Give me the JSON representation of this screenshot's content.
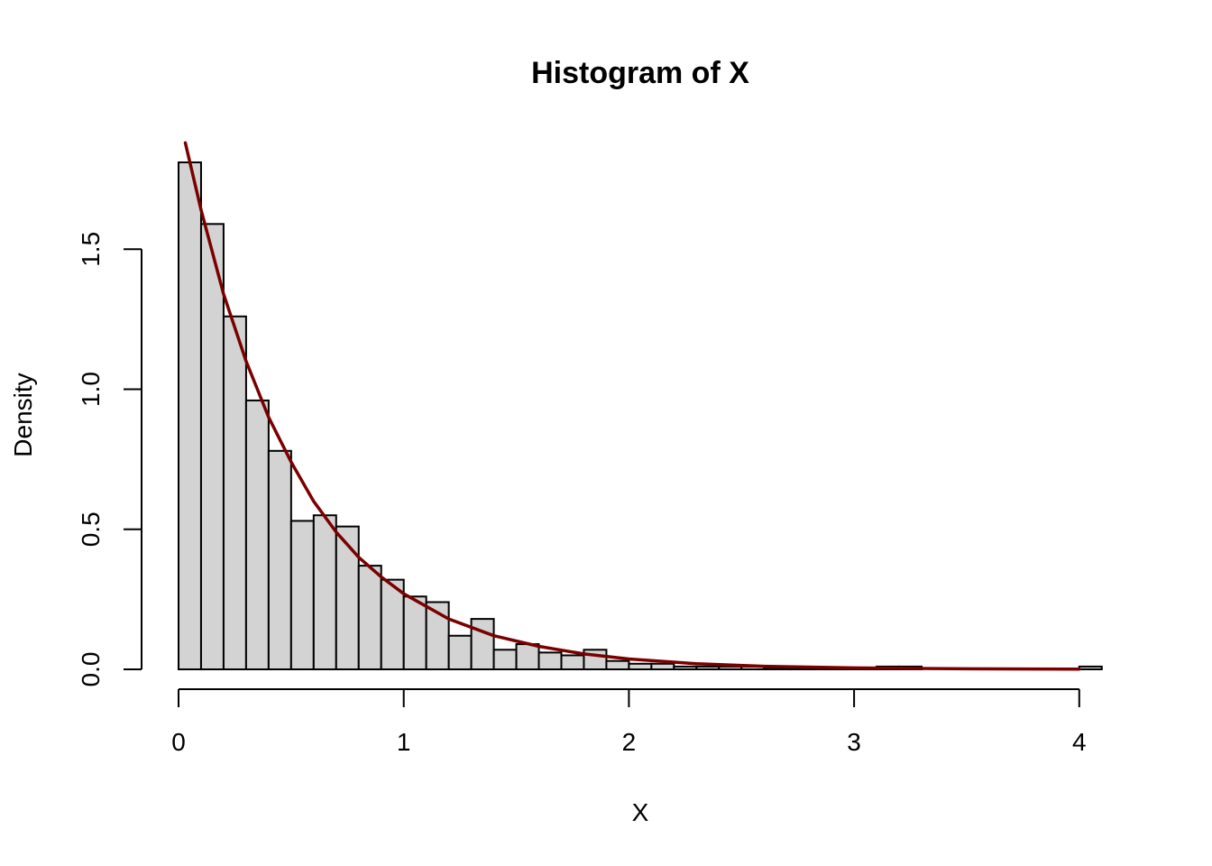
{
  "chart_data": {
    "type": "bar",
    "title": "Histogram of X",
    "xlabel": "X",
    "ylabel": "Density",
    "xlim": [
      0,
      4.1
    ],
    "ylim": [
      0,
      1.8
    ],
    "x_ticks": [
      0,
      1,
      2,
      3,
      4
    ],
    "x_tick_labels": [
      "0",
      "1",
      "2",
      "3",
      "4"
    ],
    "y_ticks": [
      0,
      0.5,
      1,
      1.5
    ],
    "y_tick_labels": [
      "0.0",
      "0.5",
      "1.0",
      "1.5"
    ],
    "bin_width": 0.1,
    "bin_starts": [
      0.0,
      0.1,
      0.2,
      0.3,
      0.4,
      0.5,
      0.6,
      0.7,
      0.8,
      0.9,
      1.0,
      1.1,
      1.2,
      1.3,
      1.4,
      1.5,
      1.6,
      1.7,
      1.8,
      1.9,
      2.0,
      2.1,
      2.2,
      2.3,
      2.4,
      2.5,
      2.6,
      2.7,
      2.8,
      2.9,
      3.0,
      3.1,
      3.2,
      3.3,
      3.4,
      3.5,
      3.6,
      3.7,
      3.8,
      3.9,
      4.0
    ],
    "densities": [
      1.81,
      1.59,
      1.26,
      0.96,
      0.78,
      0.53,
      0.55,
      0.51,
      0.37,
      0.32,
      0.26,
      0.24,
      0.12,
      0.18,
      0.07,
      0.09,
      0.06,
      0.05,
      0.07,
      0.03,
      0.02,
      0.02,
      0.01,
      0.01,
      0.01,
      0.01,
      0.005,
      0.005,
      0.005,
      0.005,
      0.005,
      0.01,
      0.01,
      0.0,
      0.0,
      0.0,
      0.0,
      0.0,
      0.0,
      0.0,
      0.01
    ],
    "bar_fill": "#d3d3d3",
    "density_curve": {
      "type": "line",
      "color": "#7a0000",
      "rate": 2,
      "x": [
        0.03,
        0.1,
        0.2,
        0.3,
        0.4,
        0.5,
        0.6,
        0.7,
        0.8,
        0.9,
        1.0,
        1.2,
        1.4,
        1.6,
        1.8,
        2.0,
        2.3,
        2.6,
        3.0,
        3.5,
        4.0
      ],
      "y": [
        1.88,
        1.64,
        1.34,
        1.1,
        0.9,
        0.74,
        0.6,
        0.49,
        0.4,
        0.33,
        0.27,
        0.18,
        0.12,
        0.082,
        0.055,
        0.037,
        0.02,
        0.011,
        0.005,
        0.0018,
        0.0007
      ]
    }
  }
}
